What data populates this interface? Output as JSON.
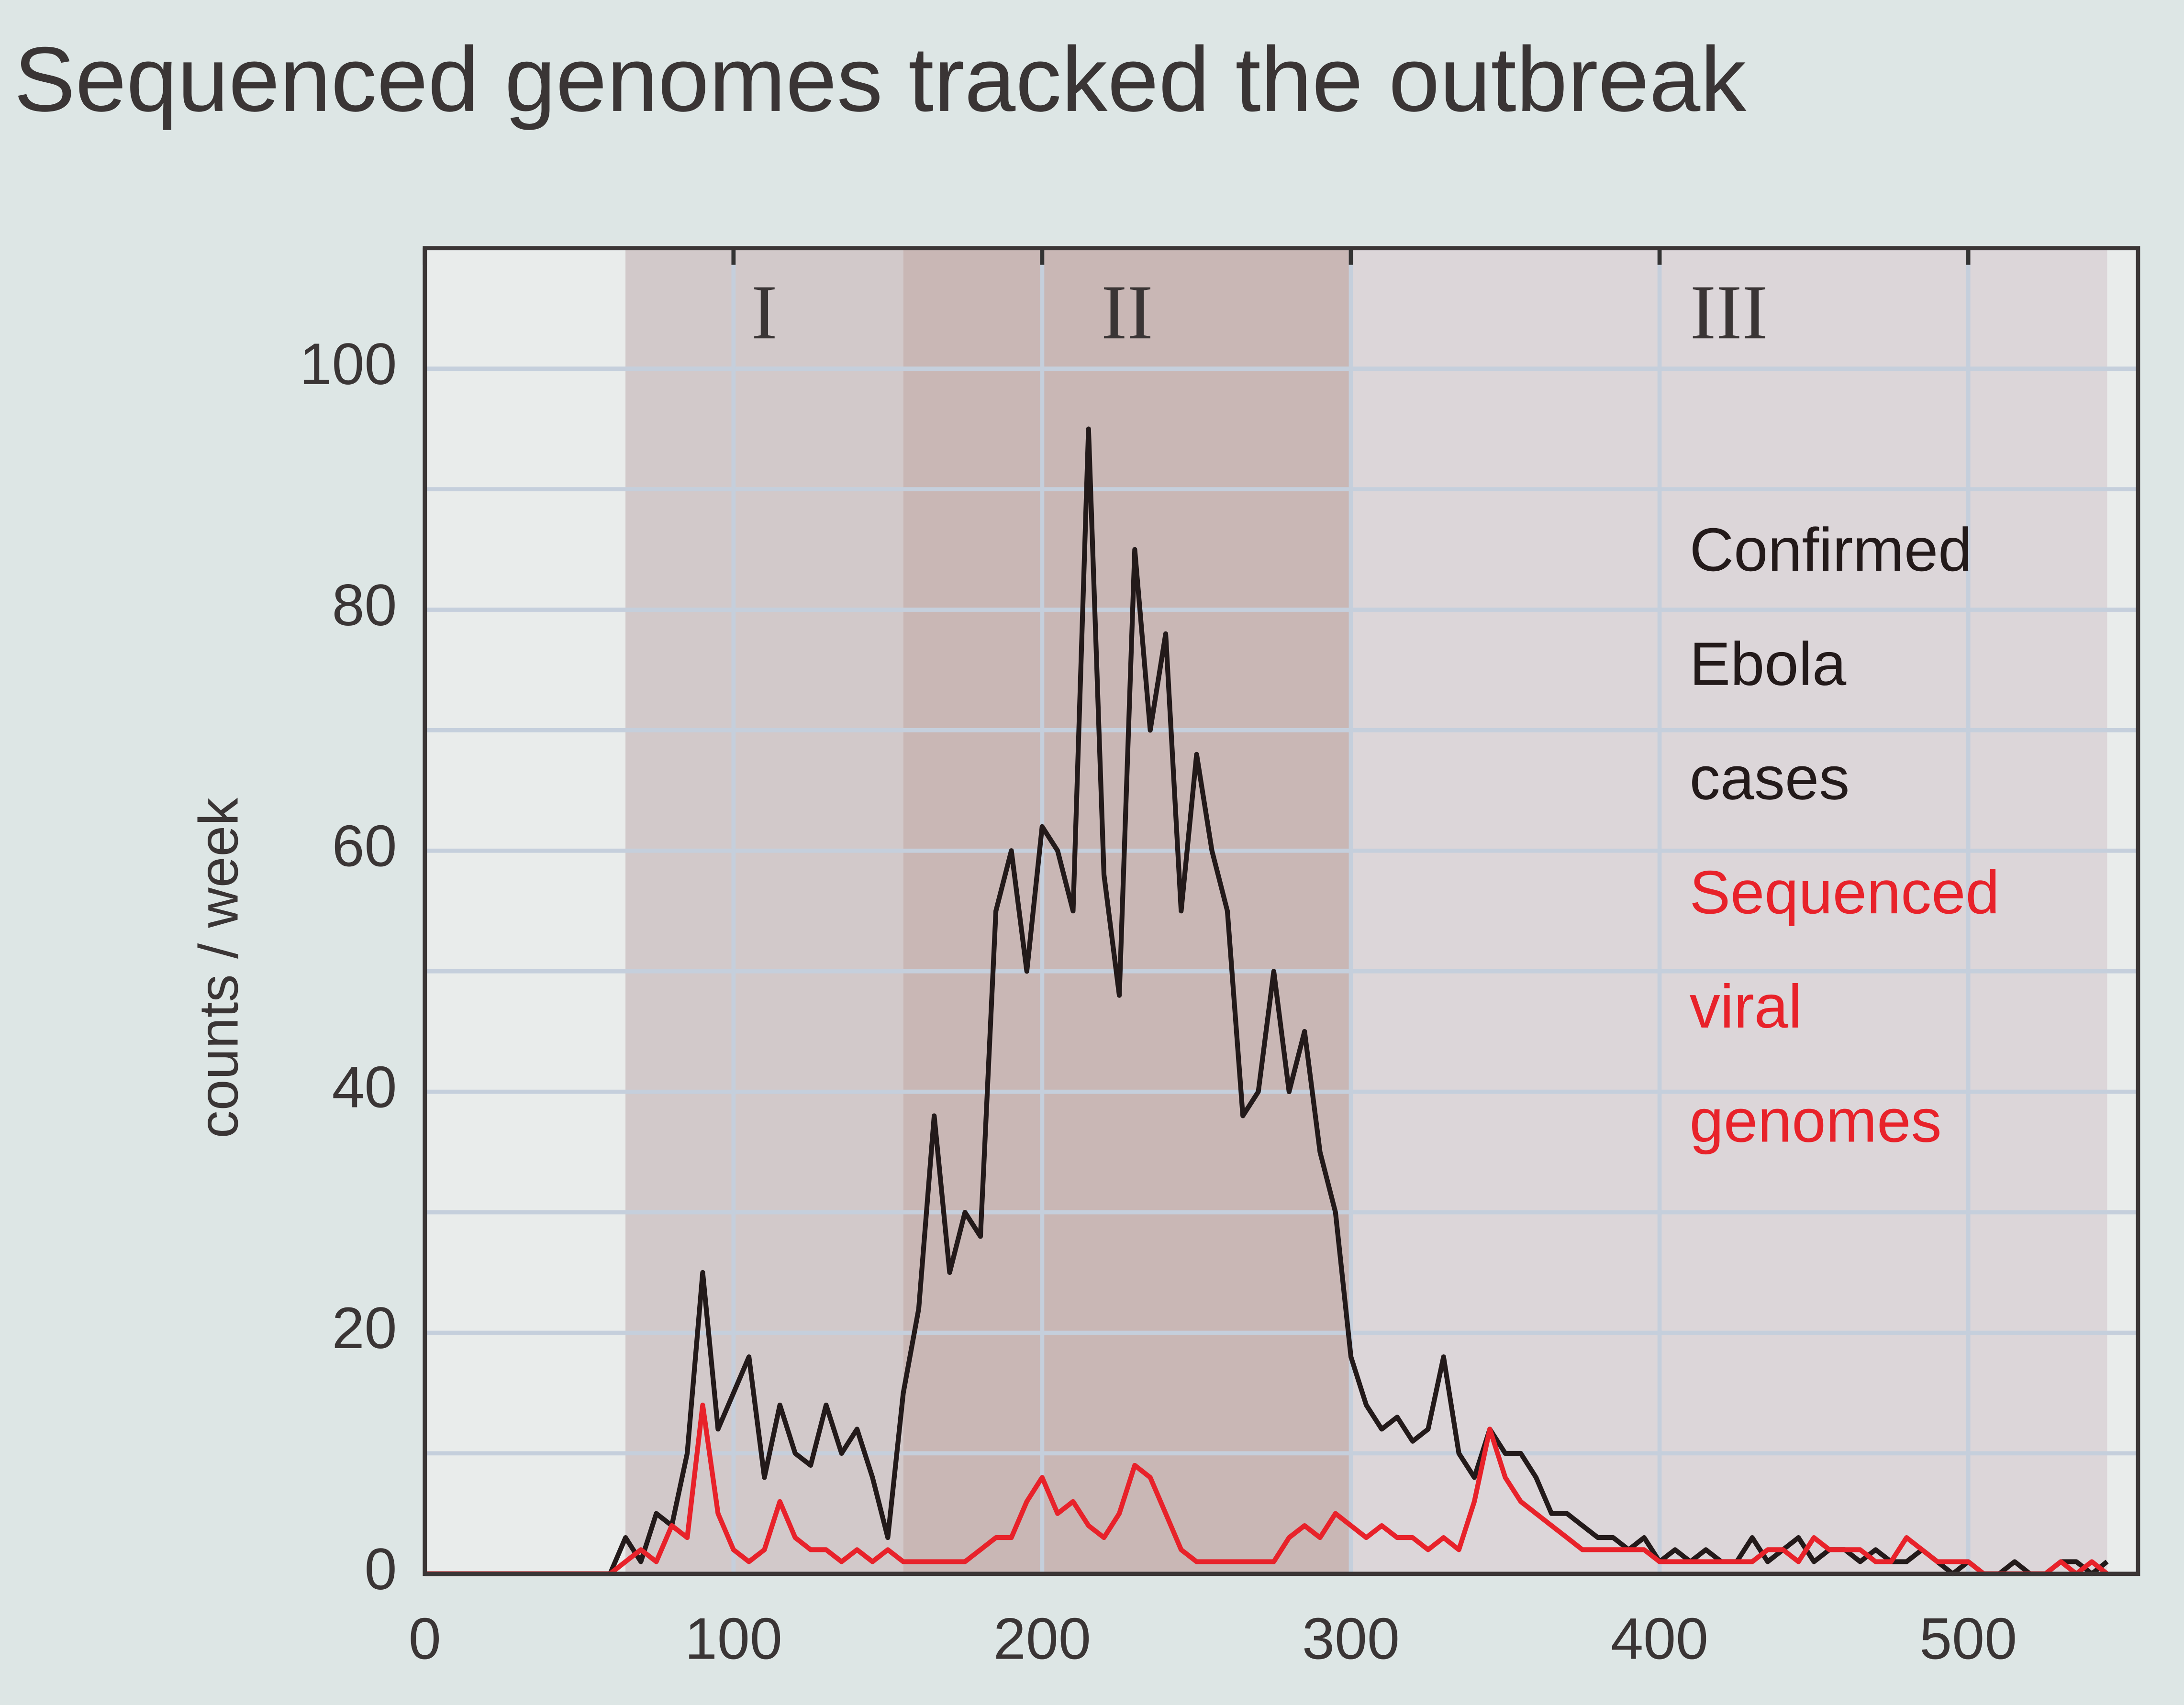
{
  "chart_data": {
    "type": "line",
    "title": "Sequenced genomes tracked the outbreak",
    "y_label": "counts / week",
    "x": [
      0,
      55,
      60,
      65,
      70,
      75,
      80,
      85,
      90,
      95,
      100,
      105,
      110,
      115,
      120,
      125,
      130,
      135,
      140,
      145,
      150,
      155,
      160,
      165,
      170,
      175,
      180,
      185,
      190,
      195,
      200,
      205,
      210,
      215,
      220,
      225,
      230,
      235,
      240,
      245,
      250,
      255,
      260,
      265,
      270,
      275,
      280,
      285,
      290,
      295,
      300,
      305,
      310,
      315,
      320,
      325,
      330,
      335,
      340,
      345,
      350,
      355,
      360,
      365,
      370,
      375,
      380,
      385,
      390,
      395,
      400,
      405,
      410,
      415,
      420,
      425,
      430,
      435,
      440,
      445,
      450,
      455,
      460,
      465,
      470,
      475,
      480,
      485,
      490,
      495,
      500,
      505,
      510,
      515,
      520,
      525,
      530,
      535,
      540,
      545
    ],
    "series": [
      {
        "name": "Confirmed Ebola cases",
        "color": "#231a1a",
        "values": [
          0,
          0,
          0,
          3,
          1,
          5,
          4,
          10,
          25,
          12,
          15,
          18,
          8,
          14,
          10,
          9,
          14,
          10,
          12,
          8,
          3,
          15,
          22,
          38,
          25,
          30,
          28,
          55,
          60,
          50,
          62,
          60,
          55,
          95,
          58,
          48,
          85,
          70,
          78,
          55,
          68,
          60,
          55,
          38,
          40,
          50,
          40,
          45,
          35,
          30,
          18,
          14,
          12,
          13,
          11,
          12,
          18,
          10,
          8,
          12,
          10,
          10,
          8,
          5,
          5,
          4,
          3,
          3,
          2,
          3,
          1,
          2,
          1,
          2,
          1,
          1,
          3,
          1,
          2,
          3,
          1,
          2,
          2,
          1,
          2,
          1,
          1,
          2,
          1,
          0,
          1,
          0,
          0,
          1,
          0,
          0,
          1,
          1,
          0,
          1
        ]
      },
      {
        "name": "Sequenced viral genomes",
        "color": "#e8222a",
        "values": [
          0,
          0,
          0,
          1,
          2,
          1,
          4,
          3,
          14,
          5,
          2,
          1,
          2,
          6,
          3,
          2,
          2,
          1,
          2,
          1,
          2,
          1,
          1,
          1,
          1,
          1,
          2,
          3,
          3,
          6,
          8,
          5,
          6,
          4,
          3,
          5,
          9,
          8,
          5,
          2,
          1,
          1,
          1,
          1,
          1,
          1,
          3,
          4,
          3,
          5,
          4,
          3,
          4,
          3,
          3,
          2,
          3,
          2,
          6,
          12,
          8,
          6,
          5,
          4,
          3,
          2,
          2,
          2,
          2,
          2,
          1,
          1,
          1,
          1,
          1,
          1,
          1,
          2,
          2,
          1,
          3,
          2,
          2,
          2,
          1,
          1,
          3,
          2,
          1,
          1,
          1,
          0,
          0,
          0,
          0,
          0,
          1,
          0,
          1,
          0
        ]
      }
    ],
    "xlim": [
      0,
      555
    ],
    "ylim": [
      0,
      110
    ],
    "xticks": [
      0,
      100,
      200,
      300,
      400,
      500
    ],
    "yticks": [
      0,
      20,
      40,
      60,
      80,
      100
    ],
    "minor_yticks": [
      10,
      30,
      50,
      70,
      90
    ],
    "grid": true,
    "regions": [
      {
        "label": "I",
        "start": 65,
        "end": 155,
        "color": "#d2c9ca"
      },
      {
        "label": "II",
        "start": 155,
        "end": 300,
        "color": "#c9b7b5"
      },
      {
        "label": "III",
        "start": 300,
        "end": 545,
        "color": "#dcd6d9"
      }
    ]
  }
}
